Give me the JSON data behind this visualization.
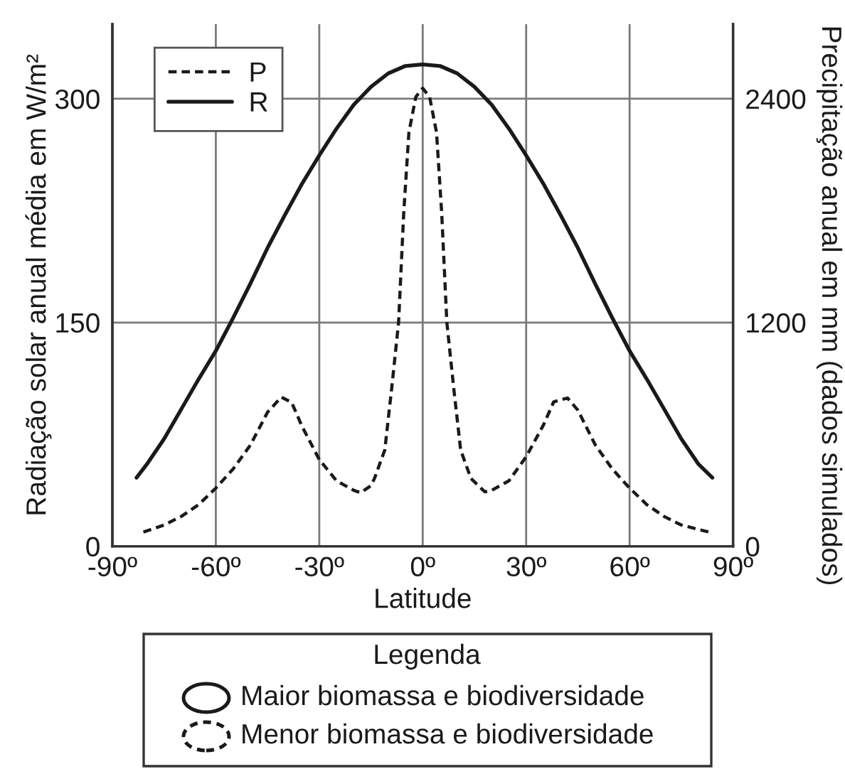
{
  "chart_data": {
    "type": "line",
    "xlabel": "Latitude",
    "ylabel": "Radiação solar anual média em W/m²",
    "y2label": "Precipitação anual em mm (dados simulados)",
    "xlim": [
      -90,
      90
    ],
    "xticks": [
      {
        "value": -90,
        "label": "-90º"
      },
      {
        "value": -60,
        "label": "-60º"
      },
      {
        "value": -30,
        "label": "-30º"
      },
      {
        "value": 0,
        "label": "0º"
      },
      {
        "value": 30,
        "label": "30º"
      },
      {
        "value": 60,
        "label": "60º"
      },
      {
        "value": 90,
        "label": "90º"
      }
    ],
    "ylim": [
      0,
      350
    ],
    "yticks": [
      0,
      150,
      300
    ],
    "y2lim": [
      0,
      2800
    ],
    "y2ticks": [
      0,
      1200,
      2400
    ],
    "grid": true,
    "legend": "top left",
    "series": [
      {
        "name": "P",
        "color": "#1a1a1a",
        "line_style": "dashed",
        "axis": "y2",
        "x": [
          -81,
          -75,
          -70,
          -65,
          -60,
          -55,
          -50,
          -45,
          -41,
          -38,
          -35,
          -30,
          -25,
          -20,
          -18,
          -15,
          -14,
          -11,
          -9,
          -7,
          -5.5,
          -4,
          -2,
          0,
          2,
          4,
          5.5,
          7,
          9,
          11,
          14,
          18,
          20,
          25,
          30,
          35,
          38,
          42,
          45,
          50,
          55,
          60,
          65,
          70,
          75,
          83
        ],
        "values": [
          76,
          114,
          160,
          223,
          312,
          414,
          542,
          719,
          800,
          771,
          643,
          465,
          351,
          300,
          287,
          325,
          363,
          516,
          847,
          1200,
          1790,
          2220,
          2410,
          2456,
          2410,
          2220,
          1790,
          1200,
          847,
          516,
          363,
          292,
          300,
          351,
          480,
          650,
          775,
          795,
          730,
          545,
          414,
          312,
          223,
          160,
          114,
          76
        ]
      },
      {
        "name": "R",
        "color": "#1a1a1a",
        "line_style": "solid",
        "x": [
          -83,
          -80,
          -75,
          -70,
          -65,
          -60,
          -55,
          -50,
          -45,
          -40,
          -35,
          -30,
          -25,
          -20,
          -15,
          -10,
          -5,
          0,
          5,
          10,
          15,
          20,
          25,
          30,
          35,
          40,
          45,
          50,
          55,
          60,
          65,
          70,
          75,
          80,
          84
        ],
        "values": [
          46,
          55,
          72,
          92,
          112,
          131,
          153,
          176,
          200,
          222,
          243,
          262,
          280,
          296,
          308,
          317,
          322,
          323,
          322,
          317,
          308,
          296,
          280,
          262,
          243,
          222,
          200,
          176,
          153,
          131,
          112,
          92,
          72,
          55,
          46
        ]
      }
    ],
    "annotations": [
      "Legenda",
      "Maior biomassa e biodiversidade",
      "Menor biomassa e biodiversidade"
    ]
  }
}
